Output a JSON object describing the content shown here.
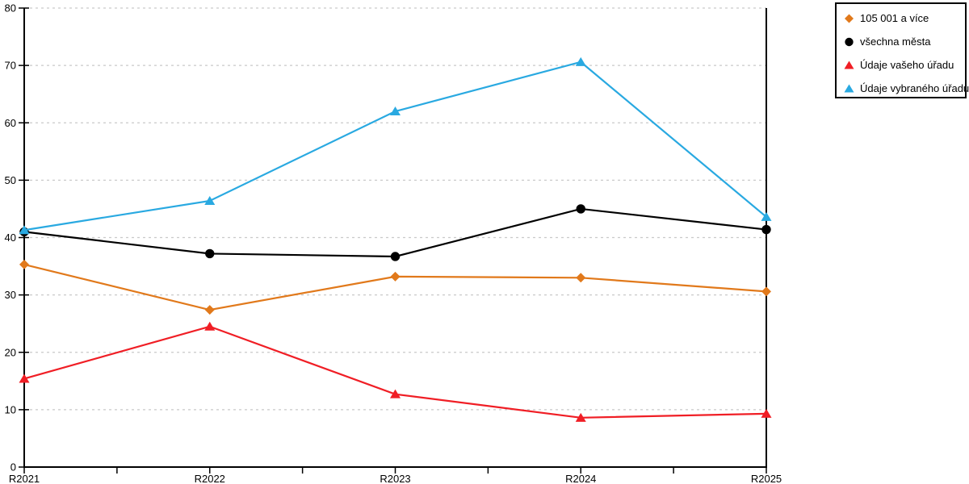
{
  "chart_data": {
    "type": "line",
    "categories": [
      "R2021",
      "R2022",
      "R2023",
      "R2024",
      "R2025"
    ],
    "series": [
      {
        "name": "105 001 a více",
        "marker": "diamond",
        "color": "#E1791B",
        "values": [
          35.3,
          27.4,
          33.2,
          33.0,
          30.6
        ]
      },
      {
        "name": "všechna města",
        "marker": "circle",
        "color": "#000000",
        "values": [
          41.0,
          37.2,
          36.7,
          45.0,
          41.4
        ]
      },
      {
        "name": "Údaje vašeho úřadu",
        "marker": "triangle",
        "color": "#F01E25",
        "values": [
          15.4,
          24.5,
          12.7,
          8.6,
          9.3
        ]
      },
      {
        "name": "Údaje vybraného úřadu",
        "marker": "triangle",
        "color": "#29A9E1",
        "values": [
          41.3,
          46.4,
          62.0,
          70.6,
          43.6
        ]
      }
    ],
    "title": "",
    "xlabel": "",
    "ylabel": "",
    "ylim": [
      0,
      80
    ],
    "ytick_step": 10,
    "yticks": [
      0,
      10,
      20,
      30,
      40,
      50,
      60,
      70,
      80
    ],
    "grid": "horizontal-dashed",
    "grid_color": "#C9C9C9",
    "axis_color": "#000000",
    "legend_position": "top-right"
  }
}
